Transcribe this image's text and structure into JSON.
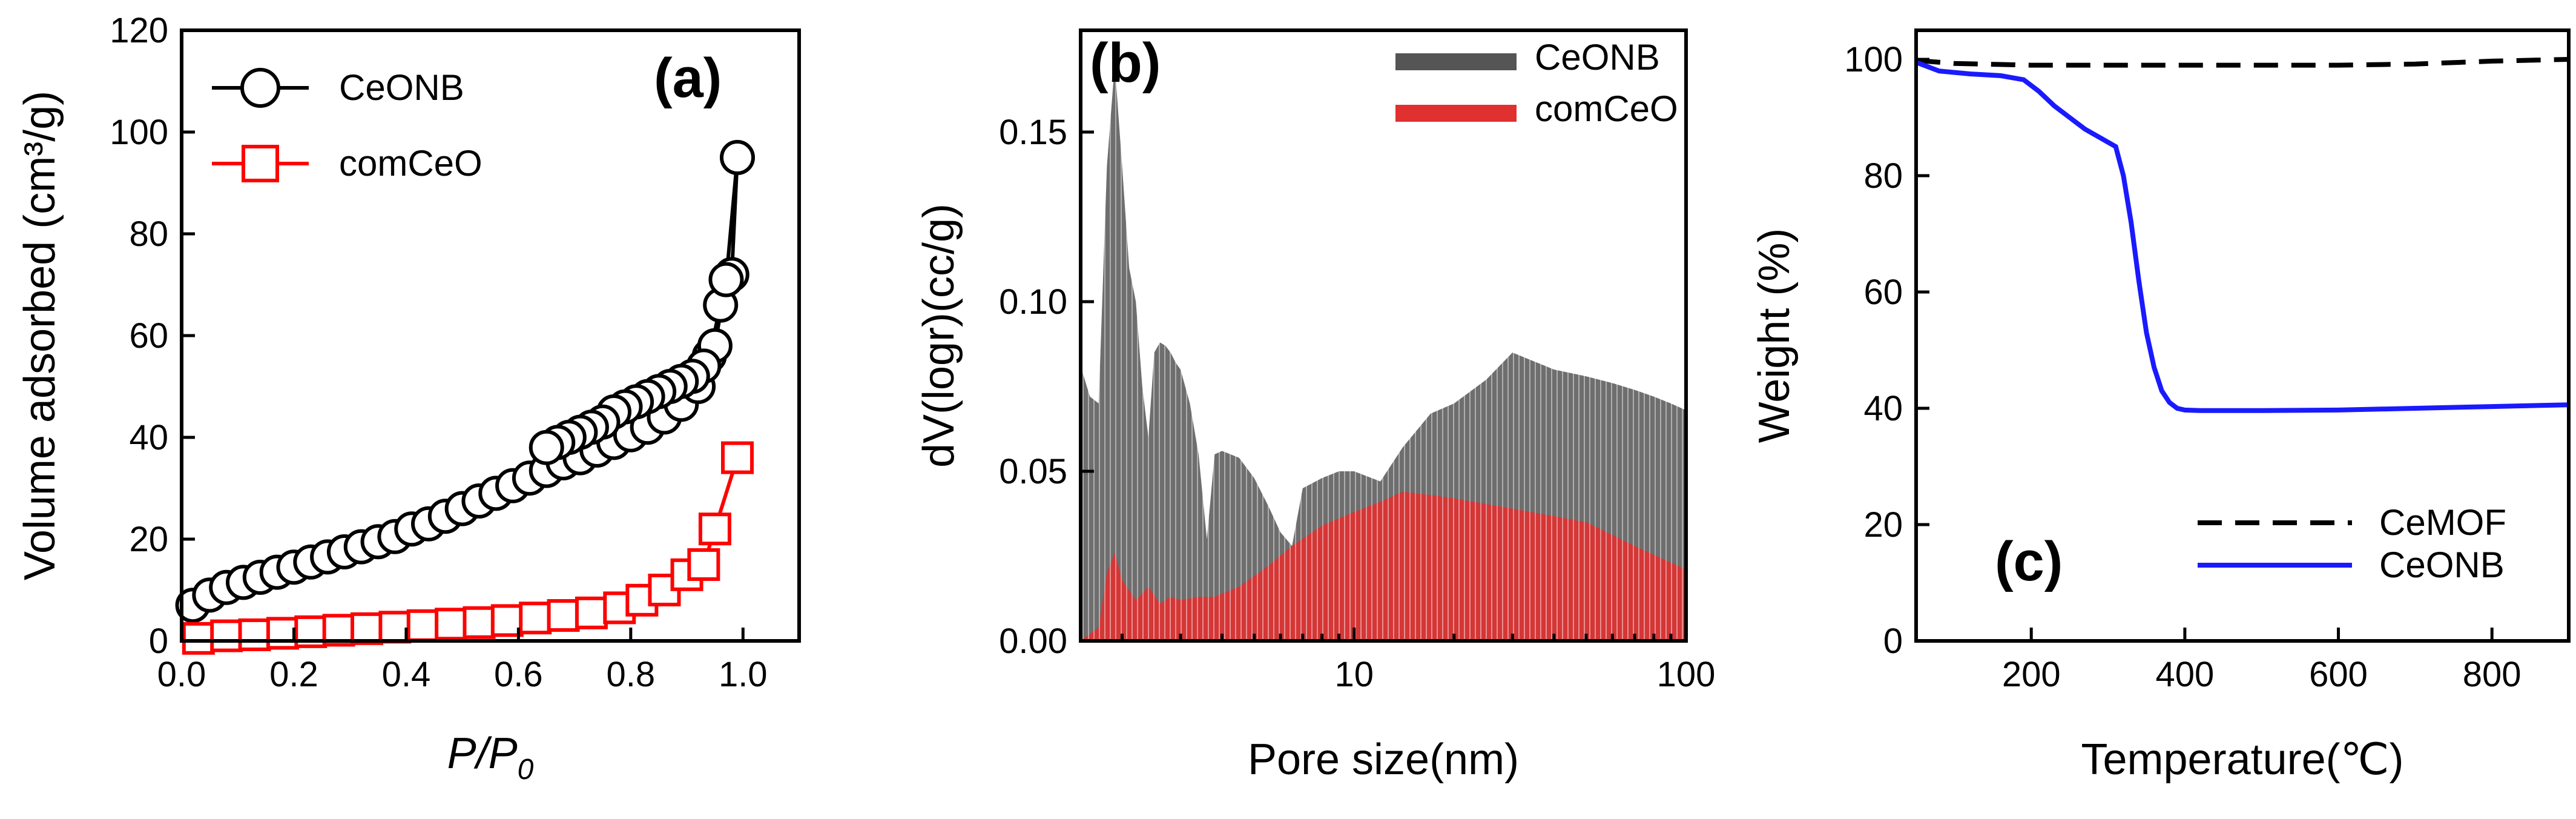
{
  "chart_data": [
    {
      "type": "scatter",
      "panel_label": "(a)",
      "xlabel": "P/P",
      "xlabel_sub": "0",
      "ylabel": "Volume adsorbed (cm³/g)",
      "xlim": [
        0.0,
        1.1
      ],
      "ylim": [
        0,
        120
      ],
      "xticks": [
        "0.0",
        "0.2",
        "0.4",
        "0.6",
        "0.8",
        "1.0"
      ],
      "xtick_values": [
        0.0,
        0.2,
        0.4,
        0.6,
        0.8,
        1.0
      ],
      "yticks": [
        "0",
        "20",
        "40",
        "60",
        "80",
        "100",
        "120"
      ],
      "ytick_values": [
        0,
        20,
        40,
        60,
        80,
        100,
        120
      ],
      "legend_position": "top-left",
      "series": [
        {
          "name": "CeONB",
          "color": "#000000",
          "marker": "circle",
          "x": [
            0.02,
            0.05,
            0.08,
            0.11,
            0.14,
            0.17,
            0.2,
            0.23,
            0.26,
            0.29,
            0.32,
            0.35,
            0.38,
            0.41,
            0.44,
            0.47,
            0.5,
            0.53,
            0.56,
            0.59,
            0.62,
            0.65,
            0.68,
            0.71,
            0.74,
            0.77,
            0.8,
            0.83,
            0.86,
            0.89,
            0.92,
            0.94,
            0.96,
            0.98,
            0.99,
            0.97,
            0.95,
            0.93,
            0.91,
            0.89,
            0.87,
            0.85,
            0.83,
            0.81,
            0.79,
            0.77,
            0.75,
            0.73,
            0.71,
            0.69,
            0.67,
            0.65
          ],
          "y": [
            7,
            9,
            10.5,
            11.5,
            12.5,
            13.5,
            14.5,
            15.5,
            16.5,
            17.5,
            18.5,
            19.5,
            20.5,
            22,
            23,
            24.5,
            26,
            27.5,
            29,
            30.5,
            32,
            33.5,
            35,
            36,
            37.5,
            39,
            40.5,
            42,
            44,
            46.5,
            50,
            56,
            66,
            72,
            95,
            71,
            58,
            54,
            52,
            51,
            50,
            49,
            48,
            47,
            46,
            45,
            43,
            42,
            41,
            40,
            39,
            38
          ]
        },
        {
          "name": "comCeO",
          "color": "#ff0000",
          "marker": "square",
          "x": [
            0.03,
            0.08,
            0.13,
            0.18,
            0.23,
            0.28,
            0.33,
            0.38,
            0.43,
            0.48,
            0.53,
            0.58,
            0.63,
            0.68,
            0.73,
            0.78,
            0.82,
            0.86,
            0.9,
            0.93,
            0.95,
            0.99
          ],
          "y": [
            0.5,
            1,
            1.2,
            1.5,
            1.8,
            2.1,
            2.4,
            2.7,
            3,
            3.3,
            3.6,
            4,
            4.5,
            5,
            5.5,
            6.5,
            8,
            10,
            13,
            15,
            22,
            36
          ]
        }
      ]
    },
    {
      "type": "area",
      "panel_label": "(b)",
      "xlabel": "Pore size(nm)",
      "ylabel": "dV(logr)(cc/g)",
      "xscale": "log",
      "xlim": [
        1.5,
        100
      ],
      "ylim": [
        0,
        0.18
      ],
      "xticks": [
        "10",
        "100"
      ],
      "xtick_values": [
        10,
        100
      ],
      "yticks": [
        "0.00",
        "0.05",
        "0.10",
        "0.15"
      ],
      "ytick_values": [
        0,
        0.05,
        0.1,
        0.15
      ],
      "legend_position": "top-right",
      "series": [
        {
          "name": "CeONB",
          "color": "#555555",
          "x": [
            1.5,
            1.6,
            1.7,
            1.8,
            1.9,
            2.0,
            2.1,
            2.2,
            2.3,
            2.4,
            2.5,
            2.6,
            2.7,
            2.8,
            2.9,
            3.0,
            3.2,
            3.4,
            3.6,
            3.8,
            4.0,
            4.5,
            5.0,
            5.5,
            6.0,
            6.5,
            7.0,
            8.0,
            9.0,
            10,
            12,
            14,
            17,
            20,
            25,
            30,
            40,
            50,
            60,
            70,
            80,
            90,
            100
          ],
          "y": [
            0.081,
            0.072,
            0.07,
            0.14,
            0.17,
            0.14,
            0.11,
            0.1,
            0.075,
            0.06,
            0.085,
            0.088,
            0.087,
            0.085,
            0.082,
            0.08,
            0.07,
            0.055,
            0.03,
            0.055,
            0.056,
            0.054,
            0.048,
            0.04,
            0.032,
            0.028,
            0.045,
            0.048,
            0.05,
            0.05,
            0.047,
            0.057,
            0.067,
            0.07,
            0.077,
            0.085,
            0.08,
            0.078,
            0.076,
            0.074,
            0.072,
            0.07,
            0.068
          ]
        },
        {
          "name": "comCeO",
          "color": "#e03030",
          "x": [
            1.5,
            1.6,
            1.7,
            1.8,
            1.9,
            2.0,
            2.2,
            2.4,
            2.6,
            2.8,
            3.0,
            3.4,
            3.8,
            4.5,
            5.5,
            6.5,
            8.0,
            10,
            12,
            14,
            17,
            20,
            30,
            50,
            70,
            100
          ],
          "y": [
            0.0,
            0.002,
            0.004,
            0.02,
            0.026,
            0.018,
            0.012,
            0.016,
            0.011,
            0.013,
            0.012,
            0.013,
            0.013,
            0.016,
            0.022,
            0.028,
            0.034,
            0.038,
            0.041,
            0.044,
            0.043,
            0.042,
            0.039,
            0.035,
            0.028,
            0.021
          ]
        }
      ]
    },
    {
      "type": "line",
      "panel_label": "(c)",
      "xlabel": "Temperature(℃)",
      "ylabel": "Weight (%)",
      "xlim": [
        50,
        900
      ],
      "ylim": [
        0,
        105
      ],
      "xticks": [
        "200",
        "400",
        "600",
        "800"
      ],
      "xtick_values": [
        200,
        400,
        600,
        800
      ],
      "yticks": [
        "0",
        "20",
        "40",
        "60",
        "80",
        "100"
      ],
      "ytick_values": [
        0,
        20,
        40,
        60,
        80,
        100
      ],
      "legend_position": "bottom-right",
      "series": [
        {
          "name": "CeMOF",
          "color": "#000000",
          "dash": true,
          "x": [
            50,
            100,
            200,
            300,
            400,
            500,
            600,
            700,
            800,
            900
          ],
          "y": [
            99.8,
            99.3,
            99,
            99,
            99,
            99,
            99,
            99.2,
            99.7,
            100
          ]
        },
        {
          "name": "CeONB",
          "color": "#1a1aff",
          "dash": false,
          "x": [
            50,
            80,
            120,
            160,
            190,
            210,
            230,
            250,
            270,
            290,
            310,
            320,
            330,
            340,
            350,
            360,
            370,
            380,
            390,
            400,
            420,
            450,
            500,
            600,
            700,
            800,
            900
          ],
          "y": [
            99.5,
            98,
            97.5,
            97.2,
            96.5,
            94.5,
            92,
            90,
            88,
            86.5,
            85,
            80,
            72,
            62,
            53,
            47,
            43,
            41,
            40,
            39.7,
            39.6,
            39.6,
            39.6,
            39.7,
            40,
            40.3,
            40.6
          ]
        }
      ]
    }
  ]
}
